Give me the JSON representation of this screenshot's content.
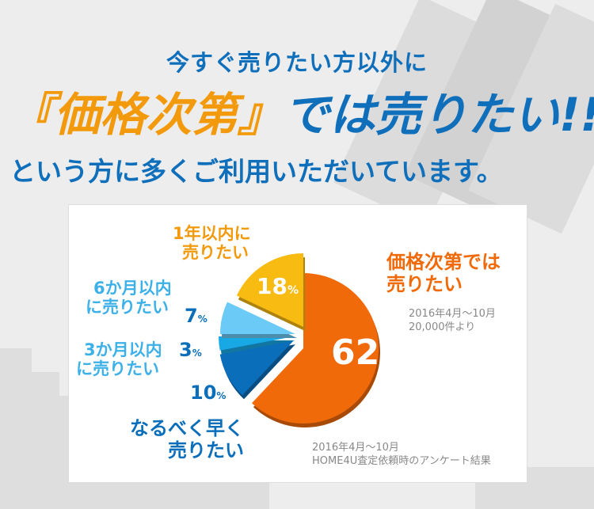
{
  "header": {
    "line1": "今すぐ売りたい方以外に",
    "line2_highlight": "『価格次第』",
    "line2_rest": "では売りたい!!",
    "line3": "という方に多くご利用いただいています。"
  },
  "chart_data": {
    "type": "pie",
    "start": "12 o'clock, clockwise",
    "exploded": true,
    "slices": [
      {
        "label": "価格次第では売りたい",
        "label_lines": [
          "価格次第では",
          "売りたい"
        ],
        "value": 62,
        "display": "62",
        "color": "#f06a0a",
        "label_color": "#f06a0a"
      },
      {
        "label": "なるべく早く売りたい",
        "label_lines": [
          "なるべく早く",
          "売りたい"
        ],
        "value": 10,
        "display": "10",
        "color": "#0b6eba",
        "label_color": "#0b6eba"
      },
      {
        "label": "3か月以内に売りたい",
        "label_lines": [
          "3か月以内",
          "に売りたい"
        ],
        "value": 3,
        "display": "3",
        "color": "#18a8e6",
        "label_color": "#3cb0e8"
      },
      {
        "label": "6か月以内に売りたい",
        "label_lines": [
          "6か月以内",
          "に売りたい"
        ],
        "value": 7,
        "display": "7",
        "color": "#6ccaf6",
        "label_color": "#3cb0e8"
      },
      {
        "label": "1年以内に売りたい",
        "label_lines": [
          "1年以内に",
          "売りたい"
        ],
        "value": 18,
        "display": "18",
        "color": "#f8bb12",
        "label_color": "#f29a0c"
      }
    ],
    "percent_sign": "%",
    "note_right": [
      "2016年4月〜10月",
      "20,000件より"
    ],
    "note_bottom": [
      "2016年4月〜10月",
      "HOME4U査定依頼時のアンケート結果"
    ]
  }
}
